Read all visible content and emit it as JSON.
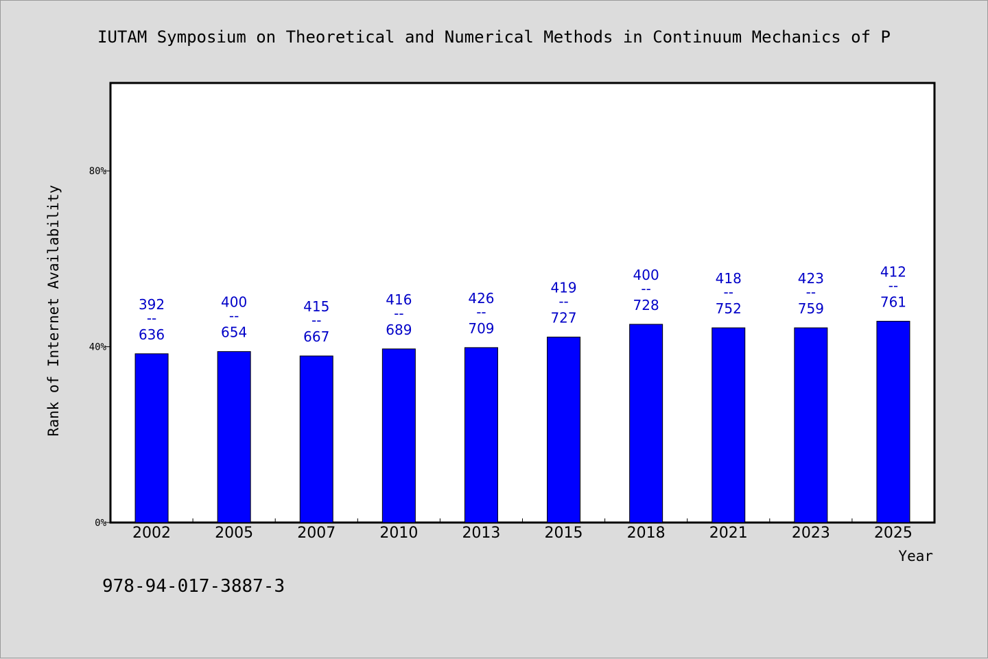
{
  "chart_data": {
    "type": "bar",
    "title": "IUTAM Symposium on Theoretical and Numerical Methods in Continuum Mechanics of P",
    "xlabel": "Year",
    "ylabel": "Rank of Internet Availability",
    "ylim": [
      0,
      100
    ],
    "yticks": [
      0,
      40,
      80
    ],
    "ytick_labels": [
      "0%",
      "40%",
      "80%"
    ],
    "grid": false,
    "categories": [
      "2002",
      "2005",
      "2007",
      "2010",
      "2013",
      "2015",
      "2018",
      "2021",
      "2023",
      "2025"
    ],
    "values": [
      38.4,
      38.9,
      37.9,
      39.5,
      39.8,
      42.2,
      45.1,
      44.3,
      44.3,
      45.8
    ],
    "label_top": [
      "392",
      "400",
      "415",
      "416",
      "426",
      "419",
      "400",
      "418",
      "423",
      "412"
    ],
    "label_sep": "--",
    "label_bottom": [
      "636",
      "654",
      "667",
      "689",
      "709",
      "727",
      "728",
      "752",
      "759",
      "761"
    ],
    "bar_color": "#0000ff",
    "label_color": "#0000c8"
  },
  "footer": {
    "isbn": "978-94-017-3887-3"
  }
}
